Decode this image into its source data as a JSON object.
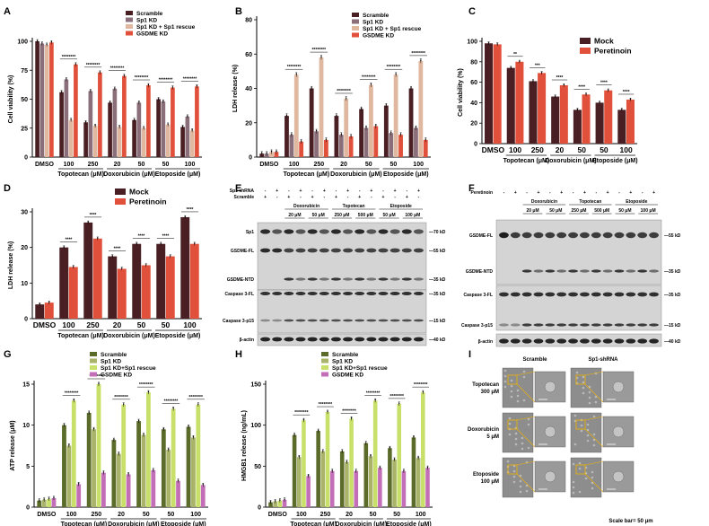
{
  "panel_labels": [
    "A",
    "B",
    "C",
    "D",
    "E",
    "F",
    "G",
    "H",
    "I"
  ],
  "chart_data": [
    {
      "id": "A",
      "type": "bar",
      "ylabel": "Cell viability (%)",
      "ylim": [
        0,
        100
      ],
      "yticks": [
        "0",
        "25",
        "50",
        "75",
        "100"
      ],
      "categories": [
        "DMSO",
        "100",
        "250",
        "20",
        "50",
        "50",
        "100"
      ],
      "groups": [
        {
          "label": "Topotecan (μM)",
          "from": 1,
          "to": 2
        },
        {
          "label": "Doxorubicin (μM)",
          "from": 3,
          "to": 4
        },
        {
          "label": "Etoposide (μM)",
          "from": 5,
          "to": 6
        }
      ],
      "series": [
        {
          "name": "Scramble",
          "color": "#4a1f24",
          "values": [
            100,
            56,
            30,
            47,
            32,
            50,
            26
          ]
        },
        {
          "name": "Sp1 KD",
          "color": "#8a6f7a",
          "values": [
            98,
            67,
            57,
            59,
            47,
            48,
            35
          ]
        },
        {
          "name": "Sp1 KD + Sp1 rescue",
          "color": "#e0b8a0",
          "values": [
            97,
            32,
            27,
            26,
            25,
            28,
            23
          ]
        },
        {
          "name": "GSDME KD",
          "color": "#e0503a",
          "values": [
            99,
            80,
            73,
            70,
            62,
            60,
            61
          ]
        }
      ],
      "sig": [
        "********",
        "********",
        "********",
        "********",
        "********",
        "********"
      ]
    },
    {
      "id": "B",
      "type": "bar",
      "ylabel": "LDH release (%)",
      "ylim": [
        0,
        80
      ],
      "yticks": [
        "0",
        "20",
        "40",
        "60",
        "80"
      ],
      "categories": [
        "DMSO",
        "100",
        "250",
        "20",
        "50",
        "50",
        "100"
      ],
      "groups": [
        {
          "label": "Topotecan (μM)",
          "from": 1,
          "to": 2
        },
        {
          "label": "Doxorubicin (μM)",
          "from": 3,
          "to": 4
        },
        {
          "label": "Etoposide (μM)",
          "from": 5,
          "to": 6
        }
      ],
      "series": [
        {
          "name": "Scramble",
          "color": "#4a1f24",
          "values": [
            2,
            24,
            40,
            24,
            28,
            30,
            40
          ]
        },
        {
          "name": "Sp1 KD",
          "color": "#8a6f7a",
          "values": [
            2,
            13,
            15,
            13,
            17,
            14,
            17
          ]
        },
        {
          "name": "Sp1 KD + Sp1 rescue",
          "color": "#e0b8a0",
          "values": [
            3,
            48,
            58,
            34,
            42,
            48,
            56
          ]
        },
        {
          "name": "GSDME KD",
          "color": "#e0503a",
          "values": [
            3,
            9,
            10,
            12,
            18,
            13,
            10
          ]
        }
      ],
      "sig": [
        "********",
        "********",
        "********",
        "********",
        "********",
        "********"
      ]
    },
    {
      "id": "C",
      "type": "bar",
      "ylabel": "Cell viability (%)",
      "ylim": [
        0,
        100
      ],
      "yticks": [
        "0",
        "20",
        "40",
        "60",
        "80",
        "100"
      ],
      "categories": [
        "DMSO",
        "100",
        "250",
        "20",
        "50",
        "50",
        "100"
      ],
      "groups": [
        {
          "label": "Topotecan (μM)",
          "from": 1,
          "to": 2
        },
        {
          "label": "Doxorubicin (μM)",
          "from": 3,
          "to": 4
        },
        {
          "label": "Etoposide (μM)",
          "from": 5,
          "to": 6
        }
      ],
      "series": [
        {
          "name": "Mock",
          "color": "#4a1f24",
          "values": [
            98,
            74,
            61,
            46,
            33,
            40,
            33
          ]
        },
        {
          "name": "Peretinoin",
          "color": "#e0503a",
          "values": [
            97,
            80,
            69,
            57,
            48,
            52,
            43
          ]
        }
      ],
      "sig": [
        "**",
        "***",
        "****",
        "****",
        "****",
        "****"
      ]
    },
    {
      "id": "D",
      "type": "bar",
      "ylabel": "LDH release (%)",
      "ylim": [
        0,
        30
      ],
      "yticks": [
        "0",
        "10",
        "20",
        "30"
      ],
      "categories": [
        "DMSO",
        "100",
        "250",
        "20",
        "50",
        "50",
        "100"
      ],
      "groups": [
        {
          "label": "Topotecan (μM)",
          "from": 1,
          "to": 2
        },
        {
          "label": "Doxorubicin (μM)",
          "from": 3,
          "to": 4
        },
        {
          "label": "Etoposide (μM)",
          "from": 5,
          "to": 6
        }
      ],
      "series": [
        {
          "name": "Mock",
          "color": "#4a1f24",
          "values": [
            4,
            20,
            27,
            17.5,
            21,
            21,
            28.5
          ]
        },
        {
          "name": "Peretinoin",
          "color": "#e0503a",
          "values": [
            4.5,
            14.5,
            22.5,
            14,
            15,
            17.5,
            21
          ]
        }
      ],
      "sig": [
        "****",
        "****",
        "****",
        "****",
        "****",
        "****"
      ]
    },
    {
      "id": "G",
      "type": "bar",
      "ylabel": "ATP release (μM)",
      "ylim": [
        0,
        15
      ],
      "yticks": [
        "0",
        "5",
        "10",
        "15"
      ],
      "categories": [
        "DMSO",
        "100",
        "250",
        "20",
        "50",
        "50",
        "100"
      ],
      "groups": [
        {
          "label": "Topotecan (μM)",
          "from": 1,
          "to": 2
        },
        {
          "label": "Doxorubicin (μM)",
          "from": 3,
          "to": 4
        },
        {
          "label": "Etoposide (μM)",
          "from": 5,
          "to": 6
        }
      ],
      "series": [
        {
          "name": "Scramble",
          "color": "#5b6b2a",
          "values": [
            0.8,
            10,
            11.5,
            8.2,
            10.5,
            9.5,
            9.8
          ]
        },
        {
          "name": "Sp1 KD",
          "color": "#a9b46a",
          "values": [
            0.9,
            7.5,
            9.5,
            6.5,
            8.8,
            7.0,
            8.5
          ]
        },
        {
          "name": "Sp1 KD+Sp1 rescue",
          "color": "#c8e06a",
          "values": [
            1.0,
            13,
            15,
            12.5,
            14,
            12,
            12.5
          ]
        },
        {
          "name": "GSDME KD",
          "color": "#c36fb8",
          "values": [
            1.1,
            2.8,
            4.2,
            4.0,
            4.5,
            3.2,
            2.7
          ]
        }
      ],
      "sig": [
        "********",
        "********",
        "********",
        "********",
        "********",
        "********"
      ]
    },
    {
      "id": "H",
      "type": "bar",
      "ylabel": "HMGB1 release (ng/mL)",
      "ylim": [
        0,
        150
      ],
      "yticks": [
        "0",
        "50",
        "100",
        "150"
      ],
      "categories": [
        "DMSO",
        "100",
        "250",
        "20",
        "50",
        "50",
        "100"
      ],
      "groups": [
        {
          "label": "Topotecan (μM)",
          "from": 1,
          "to": 2
        },
        {
          "label": "Doxorubicin (μM)",
          "from": 3,
          "to": 4
        },
        {
          "label": "Etoposide (μM)",
          "from": 5,
          "to": 6
        }
      ],
      "series": [
        {
          "name": "Scramble",
          "color": "#5b6b2a",
          "values": [
            6,
            88,
            93,
            68,
            78,
            72,
            85
          ]
        },
        {
          "name": "Sp1 KD",
          "color": "#a9b46a",
          "values": [
            7,
            61,
            68,
            55,
            62,
            58,
            60
          ]
        },
        {
          "name": "Sp1 KD+Sp1 rescue",
          "color": "#c8e06a",
          "values": [
            8,
            106,
            116,
            108,
            130,
            126,
            140
          ]
        },
        {
          "name": "GSDME KD",
          "color": "#c36fb8",
          "values": [
            9,
            38,
            44,
            44,
            48,
            44,
            48
          ]
        }
      ],
      "sig": [
        "********",
        "********",
        "********",
        "********",
        "********",
        "********"
      ]
    }
  ],
  "blots": {
    "E": {
      "header_rows": [
        {
          "label": "Sp1 shRNA",
          "marks": [
            "-",
            "+",
            "-",
            "+",
            "-",
            "+",
            "-",
            "+",
            "-",
            "+",
            "-",
            "+",
            "-",
            "+"
          ]
        },
        {
          "label": "Scramble",
          "marks": [
            "+",
            "-",
            "+",
            "-",
            "+",
            "-",
            "+",
            "-",
            "+",
            "-",
            "+",
            "-",
            "+",
            "-"
          ]
        }
      ],
      "drugs": [
        "Doxorubicin",
        "Topotecan",
        "Etoposide"
      ],
      "doses": [
        "20 μM",
        "50 μM",
        "250 μM",
        "500 μM",
        "50 μM",
        "100 μM"
      ],
      "rows": [
        "Sp1",
        "GSDME-FL",
        "GSDME-NTD",
        "Caspase 3-FL",
        "Caspase 3-p15",
        "β-actin"
      ],
      "markers": [
        "70 kD",
        "55 kD",
        "35 kD",
        "35 kD",
        "15 kD",
        "40 kD"
      ]
    },
    "F": {
      "header_rows": [
        {
          "label": "Peretinoin",
          "marks": [
            "-",
            "+",
            "-",
            "+",
            "-",
            "+",
            "-",
            "+",
            "-",
            "+",
            "-",
            "+",
            "-",
            "+"
          ]
        }
      ],
      "drugs": [
        "Doxorubicin",
        "Topotecan",
        "Etoposide"
      ],
      "doses": [
        "20 μM",
        "50 μM",
        "250 μM",
        "500 μM",
        "50 μM",
        "100 μM"
      ],
      "rows": [
        "GSDME-FL",
        "GSDME-NTD",
        "Caspase 3-FL",
        "Caspase 3-p15",
        "β-actin"
      ],
      "markers": [
        "55 kD",
        "35 kD",
        "35 kD",
        "15 kD",
        "40 kD"
      ]
    }
  },
  "images": {
    "columns": [
      "Scramble",
      "Sp1-shRNA"
    ],
    "rows": [
      {
        "drug": "Topotecan",
        "dose": "300 μM"
      },
      {
        "drug": "Doxorubicin",
        "dose": "5 μM"
      },
      {
        "drug": "Etoposide",
        "dose": "100 μM"
      }
    ],
    "scale_bar": "Scale bar= 50 μm"
  }
}
